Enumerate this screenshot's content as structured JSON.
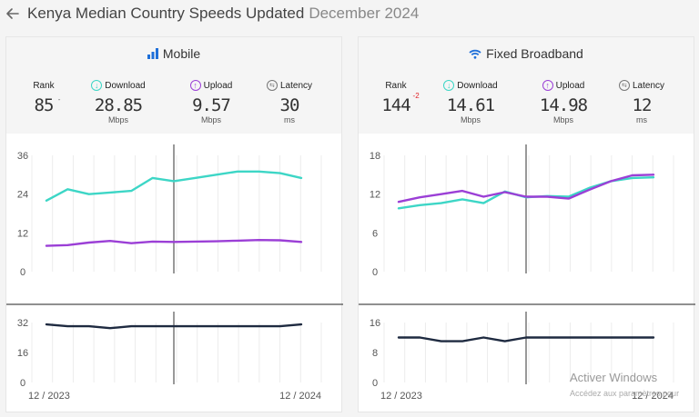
{
  "header": {
    "title": "Kenya Median Country Speeds Updated",
    "date": "December 2024"
  },
  "colors": {
    "download": "#3dd6c6",
    "upload": "#9b3fd6",
    "latency": "#1e2a40",
    "rank_change": "#e0242a"
  },
  "cards": [
    {
      "title": "Mobile",
      "icon": "signal-bars-icon",
      "metrics": {
        "rank_label": "Rank",
        "rank": "85",
        "rank_change": "-",
        "download_label": "Download",
        "download": "28.85",
        "download_unit": "Mbps",
        "upload_label": "Upload",
        "upload": "9.57",
        "upload_unit": "Mbps",
        "latency_label": "Latency",
        "latency": "30",
        "latency_unit": "ms"
      }
    },
    {
      "title": "Fixed Broadband",
      "icon": "wifi-icon",
      "metrics": {
        "rank_label": "Rank",
        "rank": "144",
        "rank_change": "-2",
        "download_label": "Download",
        "download": "14.61",
        "download_unit": "Mbps",
        "upload_label": "Upload",
        "upload": "14.98",
        "upload_unit": "Mbps",
        "latency_label": "Latency",
        "latency": "12",
        "latency_unit": "ms"
      }
    }
  ],
  "chart_data": [
    {
      "type": "line",
      "title": "",
      "x": [
        "12/2023",
        "1/2024",
        "2/2024",
        "3/2024",
        "4/2024",
        "5/2024",
        "6/2024",
        "7/2024",
        "8/2024",
        "9/2024",
        "10/2024",
        "11/2024",
        "12/2024"
      ],
      "x_tick_labels": [
        "12 / 2023",
        "12 / 2024"
      ],
      "ylim": [
        0,
        36
      ],
      "y_ticks": [
        "36",
        "24",
        "12",
        "0"
      ],
      "series": [
        {
          "name": "Download",
          "values": [
            22,
            25.5,
            24,
            24.5,
            25,
            29,
            28,
            29,
            30,
            31,
            31,
            30.5,
            29
          ]
        },
        {
          "name": "Upload",
          "values": [
            8,
            8.2,
            9,
            9.5,
            8.8,
            9.3,
            9.2,
            9.3,
            9.4,
            9.6,
            9.8,
            9.7,
            9.2
          ]
        }
      ],
      "highlight_index": 6
    },
    {
      "type": "line",
      "title": "",
      "x": [
        "12/2023",
        "1/2024",
        "2/2024",
        "3/2024",
        "4/2024",
        "5/2024",
        "6/2024",
        "7/2024",
        "8/2024",
        "9/2024",
        "10/2024",
        "11/2024",
        "12/2024"
      ],
      "x_tick_labels": [
        "12 / 2023",
        "12 / 2024"
      ],
      "ylim": [
        0,
        32
      ],
      "y_ticks": [
        "32",
        "16",
        "0"
      ],
      "series": [
        {
          "name": "Latency",
          "values": [
            31,
            30,
            30,
            29,
            30,
            30,
            30,
            30,
            30,
            30,
            30,
            30,
            31
          ]
        }
      ],
      "highlight_index": 6
    },
    {
      "type": "line",
      "title": "",
      "x": [
        "12/2023",
        "1/2024",
        "2/2024",
        "3/2024",
        "4/2024",
        "5/2024",
        "6/2024",
        "7/2024",
        "8/2024",
        "9/2024",
        "10/2024",
        "11/2024",
        "12/2024"
      ],
      "x_tick_labels": [
        "12 / 2023",
        "12 / 2024"
      ],
      "ylim": [
        0,
        18
      ],
      "y_ticks": [
        "18",
        "12",
        "6",
        "0"
      ],
      "series": [
        {
          "name": "Download",
          "values": [
            9.8,
            10.3,
            10.6,
            11.2,
            10.6,
            12.4,
            11.5,
            11.7,
            11.6,
            13,
            14,
            14.5,
            14.6
          ]
        },
        {
          "name": "Upload",
          "values": [
            10.8,
            11.5,
            12,
            12.5,
            11.6,
            12.3,
            11.6,
            11.6,
            11.3,
            12.7,
            14,
            14.9,
            15
          ]
        }
      ],
      "highlight_index": 6
    },
    {
      "type": "line",
      "title": "",
      "x": [
        "12/2023",
        "1/2024",
        "2/2024",
        "3/2024",
        "4/2024",
        "5/2024",
        "6/2024",
        "7/2024",
        "8/2024",
        "9/2024",
        "10/2024",
        "11/2024",
        "12/2024"
      ],
      "x_tick_labels": [
        "12 / 2023",
        "12 / 2024"
      ],
      "ylim": [
        0,
        16
      ],
      "y_ticks": [
        "16",
        "8",
        "0"
      ],
      "series": [
        {
          "name": "Latency",
          "values": [
            12,
            12,
            11,
            11,
            12,
            11,
            12,
            12,
            12,
            12,
            12,
            12,
            12
          ]
        }
      ],
      "highlight_index": 6
    }
  ],
  "watermark": {
    "line1": "Activer Windows",
    "line2": "Accédez aux paramètres pour"
  }
}
